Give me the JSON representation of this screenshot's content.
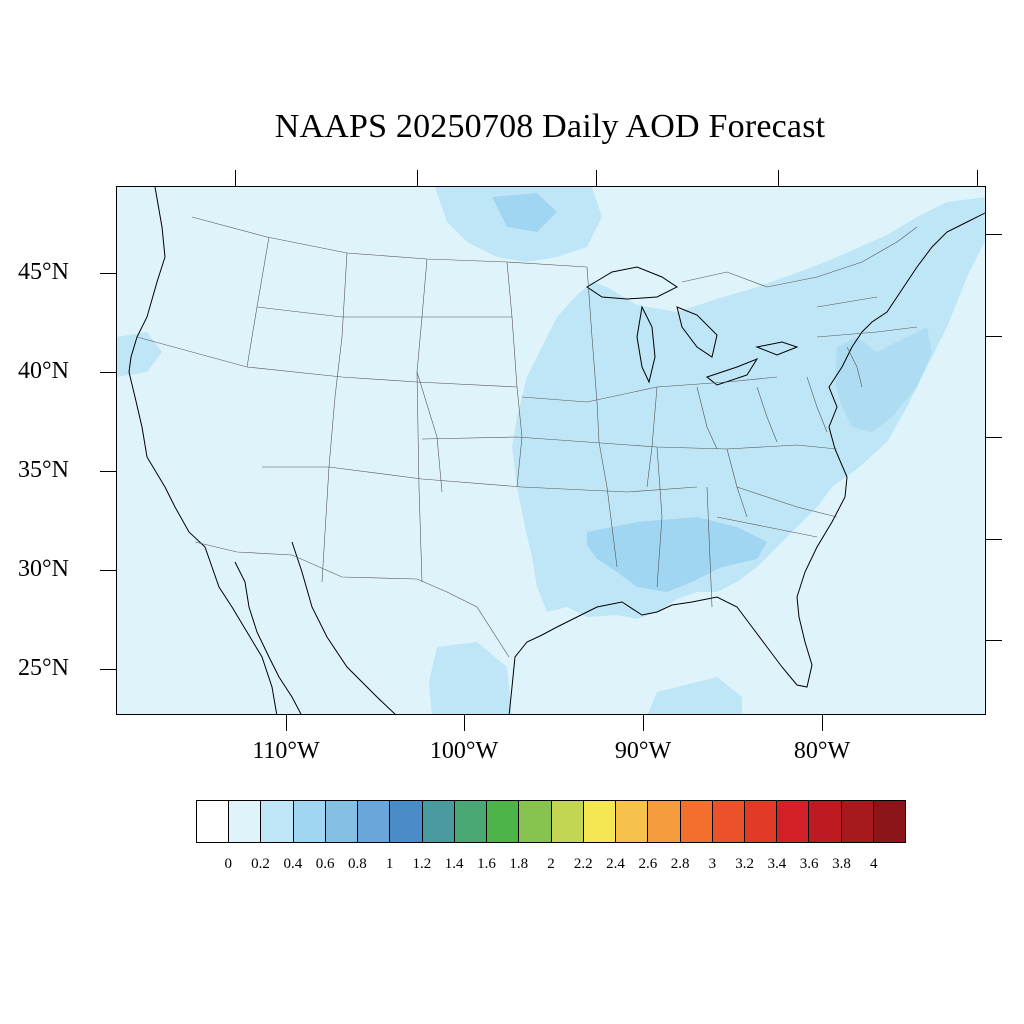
{
  "title": "NAAPS 20250708 Daily AOD Forecast",
  "lat_labels": [
    "45°N",
    "40°N",
    "35°N",
    "30°N",
    "25°N"
  ],
  "lon_labels": [
    "110°W",
    "100°W",
    "90°W",
    "80°W"
  ],
  "colorbar": {
    "labels": [
      "0",
      "0.2",
      "0.4",
      "0.6",
      "0.8",
      "1",
      "1.2",
      "1.4",
      "1.6",
      "1.8",
      "2",
      "2.2",
      "2.4",
      "2.6",
      "2.8",
      "3",
      "3.2",
      "3.4",
      "3.6",
      "3.8",
      "4"
    ],
    "colors": [
      "#ffffff",
      "#dff3fb",
      "#bfe6f6",
      "#a0d6f1",
      "#86bfe4",
      "#6aa6da",
      "#4a8bc8",
      "#4a9aa0",
      "#4aa874",
      "#4db44a",
      "#86c44f",
      "#c3d653",
      "#f5e653",
      "#f6c24b",
      "#f59c3e",
      "#f36f2d",
      "#ec5229",
      "#e13a27",
      "#d42128",
      "#bd1a22",
      "#a61a1d",
      "#8c1519"
    ]
  },
  "aod_regions": [
    {
      "level": "0.2-0.4",
      "color": "#bfe6f6"
    },
    {
      "level": "0.4-0.6",
      "color": "#a0d6f1"
    }
  ]
}
